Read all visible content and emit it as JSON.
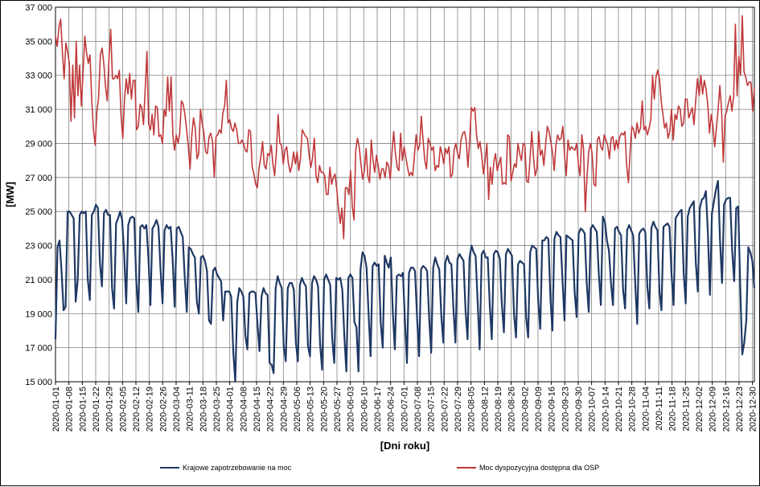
{
  "chart_data": {
    "type": "line",
    "title": "",
    "xlabel": "[Dni roku]",
    "ylabel": "[MW]",
    "ylim": [
      15000,
      37000
    ],
    "y_ticks": [
      "15 000",
      "17 000",
      "19 000",
      "21 000",
      "23 000",
      "25 000",
      "27 000",
      "29 000",
      "31 000",
      "33 000",
      "35 000",
      "37 000"
    ],
    "x_range": [
      "2020-01-01",
      "2020-12-31"
    ],
    "x_tick_labels": [
      "2020-01-01",
      "2020-01-08",
      "2020-01-15",
      "2020-01-22",
      "2020-01-29",
      "2020-02-05",
      "2020-02-12",
      "2020-02-19",
      "2020-02-26",
      "2020-03-04",
      "2020-03-11",
      "2020-03-18",
      "2020-03-25",
      "2020-04-01",
      "2020-04-08",
      "2020-04-15",
      "2020-04-22",
      "2020-04-29",
      "2020-05-06",
      "2020-05-13",
      "2020-05-20",
      "2020-05-27",
      "2020-06-03",
      "2020-06-10",
      "2020-06-17",
      "2020-06-24",
      "2020-07-01",
      "2020-07-08",
      "2020-07-15",
      "2020-07-22",
      "2020-07-29",
      "2020-08-05",
      "2020-08-12",
      "2020-08-19",
      "2020-08-26",
      "2020-09-02",
      "2020-09-09",
      "2020-09-16",
      "2020-09-23",
      "2020-09-30",
      "2020-10-07",
      "2020-10-14",
      "2020-10-21",
      "2020-10-28",
      "2020-11-04",
      "2020-11-11",
      "2020-11-18",
      "2020-11-25",
      "2020-12-02",
      "2020-12-09",
      "2020-12-16",
      "2020-12-23",
      "2020-12-30"
    ],
    "grid": true,
    "legend_position": "bottom",
    "series": [
      {
        "name": "Krajowe zapotrzebowanie na moc",
        "color": "#1f3864",
        "values": [
          17500,
          22900,
          23300,
          21500,
          19200,
          19400,
          25000,
          25000,
          24800,
          24600,
          19700,
          21000,
          24800,
          25000,
          24900,
          25000,
          21000,
          19800,
          24800,
          25000,
          25400,
          25200,
          22000,
          20600,
          24900,
          25100,
          24800,
          24800,
          20500,
          19300,
          24300,
          24600,
          25000,
          24500,
          22500,
          19600,
          24200,
          24600,
          24700,
          24600,
          20900,
          19100,
          24100,
          24200,
          24000,
          24200,
          22300,
          19500,
          24000,
          24200,
          24500,
          24100,
          21600,
          19600,
          23900,
          24200,
          24000,
          24100,
          22200,
          19400,
          24000,
          24100,
          23800,
          23500,
          21100,
          19100,
          22900,
          22800,
          22500,
          22300,
          19700,
          19000,
          22300,
          22400,
          22100,
          21500,
          18600,
          18400,
          21500,
          21700,
          21300,
          21100,
          20900,
          18600,
          20300,
          20300,
          20300,
          20000,
          16800,
          15000,
          19700,
          20500,
          20300,
          20000,
          17700,
          16900,
          20200,
          20300,
          20300,
          20200,
          18400,
          16800,
          20000,
          20500,
          20200,
          20100,
          16100,
          16000,
          15500,
          20500,
          21200,
          20800,
          20500,
          17100,
          16200,
          20500,
          20800,
          20800,
          20400,
          17300,
          16200,
          20700,
          21100,
          20800,
          20600,
          17100,
          16500,
          20800,
          21200,
          21000,
          20600,
          17200,
          15700,
          21000,
          21300,
          21000,
          20700,
          17500,
          16100,
          21100,
          21000,
          21100,
          20400,
          17700,
          15600,
          21100,
          21300,
          21100,
          18500,
          18200,
          15600,
          21600,
          22600,
          22400,
          21700,
          19000,
          16500,
          21800,
          22000,
          21800,
          21900,
          18500,
          17000,
          22400,
          22000,
          21700,
          22300,
          19100,
          16900,
          21200,
          21300,
          21200,
          21400,
          18600,
          16100,
          21400,
          21700,
          21700,
          21500,
          18800,
          16500,
          21600,
          21800,
          21700,
          21500,
          18700,
          16700,
          21700,
          22300,
          21900,
          21600,
          18900,
          17300,
          22000,
          22400,
          22000,
          21900,
          19300,
          17300,
          22200,
          22500,
          22300,
          22100,
          19200,
          17500,
          22300,
          23000,
          22600,
          22400,
          19700,
          16900,
          22500,
          22700,
          22300,
          22300,
          19500,
          17500,
          22500,
          22700,
          22600,
          22200,
          19500,
          17900,
          22500,
          22800,
          22600,
          22400,
          19000,
          17600,
          21900,
          22100,
          22000,
          21900,
          18800,
          17600,
          22600,
          23000,
          22900,
          22800,
          19700,
          18100,
          23300,
          23300,
          23500,
          23400,
          20000,
          18000,
          23400,
          23800,
          23600,
          23500,
          21000,
          18600,
          23600,
          23500,
          23400,
          23300,
          20300,
          18800,
          23700,
          24000,
          23900,
          23700,
          20800,
          19100,
          24000,
          24200,
          24000,
          23800,
          21300,
          19500,
          24700,
          24400,
          23300,
          22700,
          20800,
          19500,
          24000,
          24100,
          23800,
          23600,
          20400,
          19300,
          23900,
          24200,
          23900,
          23600,
          20800,
          18400,
          23700,
          23900,
          24000,
          23800,
          20600,
          19300,
          24000,
          24400,
          24100,
          23900,
          20300,
          19200,
          24100,
          24200,
          24300,
          24100,
          21300,
          19500,
          24600,
          24800,
          25000,
          25100,
          21400,
          19600,
          24700,
          25200,
          25400,
          25600,
          22000,
          20300,
          25200,
          25700,
          25800,
          26200,
          23700,
          20100,
          24900,
          25600,
          26300,
          26800,
          23300,
          20800,
          25400,
          25700,
          25800,
          25800,
          22700,
          20900,
          25200,
          25300,
          20600,
          16600,
          17300,
          18600,
          22900,
          22600,
          22100,
          20500
        ]
      },
      {
        "name": "Moc dyspozycyjna dostępna dla OSP",
        "color": "#c0393b",
        "values": [
          35300,
          34700,
          35800,
          36300,
          34400,
          32800,
          34900,
          34400,
          33700,
          30300,
          33600,
          30500,
          35000,
          31800,
          33600,
          31200,
          33200,
          35300,
          34300,
          33700,
          34200,
          31600,
          29800,
          28900,
          30900,
          31700,
          34200,
          34600,
          33700,
          32300,
          31500,
          34000,
          35700,
          32800,
          32800,
          33000,
          32800,
          33300,
          30600,
          29300,
          31600,
          32800,
          31900,
          33100,
          31600,
          32700,
          32700,
          29800,
          30000,
          31300,
          31100,
          30100,
          32200,
          34400,
          30100,
          29800,
          30700,
          29500,
          31200,
          31100,
          29400,
          29500,
          29000,
          31000,
          30600,
          32900,
          30900,
          32900,
          29500,
          28600,
          29500,
          29000,
          29600,
          31500,
          31300,
          30700,
          29800,
          28800,
          27500,
          29500,
          30500,
          29900,
          28100,
          28400,
          31000,
          30200,
          29600,
          28500,
          28400,
          29400,
          29600,
          29100,
          27000,
          29400,
          29500,
          29800,
          29600,
          30800,
          31200,
          32700,
          30200,
          30400,
          29900,
          29700,
          30200,
          29800,
          29000,
          29000,
          29200,
          29000,
          28600,
          28500,
          29800,
          29700,
          27600,
          27200,
          26600,
          26400,
          27600,
          28200,
          29100,
          27700,
          27500,
          28400,
          28300,
          28900,
          27800,
          27100,
          28500,
          30700,
          29000,
          28900,
          27800,
          28600,
          28800,
          27800,
          27300,
          27700,
          28500,
          27800,
          28500,
          27400,
          28200,
          29800,
          29600,
          29400,
          29300,
          28300,
          27600,
          28200,
          29300,
          27100,
          26700,
          27700,
          27300,
          27300,
          27100,
          26000,
          26000,
          27600,
          26600,
          27000,
          27200,
          26300,
          25200,
          24300,
          25200,
          23400,
          26400,
          26400,
          26000,
          27400,
          25300,
          24500,
          28600,
          29300,
          28800,
          27800,
          26900,
          27400,
          28700,
          27100,
          26700,
          29200,
          28000,
          27300,
          28300,
          27700,
          26900,
          27500,
          27500,
          27000,
          27900,
          27700,
          26900,
          28500,
          29700,
          28400,
          27600,
          27400,
          29600,
          28000,
          28800,
          28200,
          27600,
          27100,
          27300,
          27100,
          28300,
          29500,
          28600,
          28900,
          30600,
          29200,
          28000,
          27500,
          29300,
          29000,
          28600,
          28800,
          27400,
          27700,
          27600,
          28800,
          28400,
          27800,
          28700,
          28400,
          28800,
          27000,
          27200,
          28600,
          29000,
          28400,
          28100,
          29200,
          29600,
          29700,
          29200,
          27600,
          29100,
          31100,
          30900,
          31100,
          29500,
          28700,
          29100,
          28300,
          27200,
          28000,
          29000,
          25700,
          27600,
          26600,
          27900,
          28400,
          27400,
          27800,
          28200,
          26600,
          26700,
          26600,
          29500,
          29400,
          26800,
          27300,
          27800,
          27600,
          29000,
          28400,
          28000,
          29000,
          28900,
          26800,
          26700,
          28100,
          29700,
          28200,
          27100,
          27500,
          29700,
          28300,
          28600,
          27700,
          28900,
          30000,
          29700,
          29100,
          28500,
          27400,
          28900,
          29500,
          29200,
          29300,
          30000,
          28300,
          27100,
          29200,
          28600,
          28800,
          28700,
          28600,
          29000,
          27800,
          27100,
          29500,
          28700,
          25000,
          27000,
          28500,
          29000,
          28400,
          26600,
          26500,
          29200,
          29400,
          28800,
          28600,
          29500,
          29200,
          28900,
          28100,
          29300,
          29400,
          28600,
          29200,
          28700,
          29400,
          29600,
          29500,
          29700,
          27700,
          26700,
          28500,
          30000,
          29800,
          29300,
          30200,
          29600,
          29900,
          31500,
          29800,
          30000,
          29500,
          29900,
          30400,
          33000,
          31600,
          32900,
          33300,
          32800,
          31500,
          30700,
          29900,
          30200,
          29300,
          29700,
          31000,
          29200,
          30700,
          30400,
          31200,
          31000,
          30000,
          30200,
          31600,
          31600,
          30500,
          30800,
          31100,
          30100,
          31500,
          32800,
          31800,
          33000,
          31900,
          32700,
          32200,
          31300,
          29600,
          30700,
          30000,
          28800,
          29900,
          31000,
          32400,
          31000,
          27900,
          30600,
          30900,
          31400,
          31800,
          30900,
          31800,
          36000,
          31800,
          34100,
          33000,
          36500,
          33200,
          32900,
          32400,
          32600,
          32600,
          30900,
          32300
        ]
      }
    ]
  }
}
